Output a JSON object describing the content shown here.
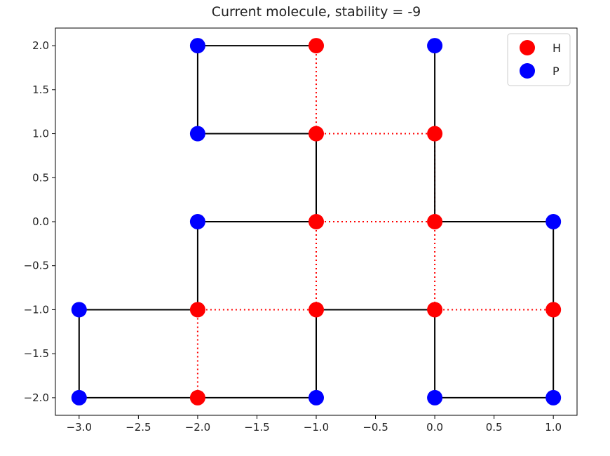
{
  "chart_data": {
    "type": "scatter",
    "title": "Current molecule, stability = -9",
    "xlabel": "",
    "ylabel": "",
    "xlim": [
      -3.2,
      1.2
    ],
    "ylim": [
      -2.2,
      2.2
    ],
    "xticks": [
      -3.0,
      -2.5,
      -2.0,
      -1.5,
      -1.0,
      -0.5,
      0.0,
      0.5,
      1.0
    ],
    "yticks": [
      -2.0,
      -1.5,
      -1.0,
      -0.5,
      0.0,
      0.5,
      1.0,
      1.5,
      2.0
    ],
    "xtick_labels": [
      "−3.0",
      "−2.5",
      "−2.0",
      "−1.5",
      "−1.0",
      "−0.5",
      "0.0",
      "0.5",
      "1.0"
    ],
    "ytick_labels": [
      "−2.0",
      "−1.5",
      "−1.0",
      "−0.5",
      "0.0",
      "0.5",
      "1.0",
      "1.5",
      "2.0"
    ],
    "grid": false,
    "legend": {
      "placement": "top-right",
      "entries": [
        {
          "label": "H",
          "color": "#ff0000"
        },
        {
          "label": "P",
          "color": "#0000ff"
        }
      ]
    },
    "colors": {
      "H": "#ff0000",
      "P": "#0000ff",
      "chain": "#000000",
      "contact": "#ff0000"
    },
    "chain": [
      {
        "x": 0,
        "y": 2,
        "type": "P"
      },
      {
        "x": 0,
        "y": 1,
        "type": "H"
      },
      {
        "x": 0,
        "y": 0,
        "type": "H"
      },
      {
        "x": 1,
        "y": 0,
        "type": "P"
      },
      {
        "x": 1,
        "y": -1,
        "type": "H"
      },
      {
        "x": 1,
        "y": -2,
        "type": "P"
      },
      {
        "x": 0,
        "y": -2,
        "type": "P"
      },
      {
        "x": 0,
        "y": -1,
        "type": "H"
      },
      {
        "x": -1,
        "y": -1,
        "type": "H"
      },
      {
        "x": -1,
        "y": -2,
        "type": "P"
      },
      {
        "x": -2,
        "y": -2,
        "type": "H"
      },
      {
        "x": -3,
        "y": -2,
        "type": "P"
      },
      {
        "x": -3,
        "y": -1,
        "type": "P"
      },
      {
        "x": -2,
        "y": -1,
        "type": "H"
      },
      {
        "x": -2,
        "y": 0,
        "type": "P"
      },
      {
        "x": -1,
        "y": 0,
        "type": "H"
      },
      {
        "x": -1,
        "y": 1,
        "type": "H"
      },
      {
        "x": -2,
        "y": 1,
        "type": "P"
      },
      {
        "x": -2,
        "y": 2,
        "type": "P"
      },
      {
        "x": -1,
        "y": 2,
        "type": "H"
      }
    ],
    "contacts": [
      [
        {
          "x": -1,
          "y": 2
        },
        {
          "x": -1,
          "y": 1
        }
      ],
      [
        {
          "x": -1,
          "y": 1
        },
        {
          "x": 0,
          "y": 1
        }
      ],
      [
        {
          "x": -1,
          "y": 0
        },
        {
          "x": 0,
          "y": 0
        }
      ],
      [
        {
          "x": -1,
          "y": 0
        },
        {
          "x": -1,
          "y": -1
        }
      ],
      [
        {
          "x": 0,
          "y": 1
        },
        {
          "x": 0,
          "y": 0
        }
      ],
      [
        {
          "x": 0,
          "y": 0
        },
        {
          "x": 0,
          "y": -1
        }
      ],
      [
        {
          "x": -2,
          "y": -1
        },
        {
          "x": -1,
          "y": -1
        }
      ],
      [
        {
          "x": -2,
          "y": -1
        },
        {
          "x": -2,
          "y": -2
        }
      ],
      [
        {
          "x": 0,
          "y": -1
        },
        {
          "x": 1,
          "y": -1
        }
      ]
    ]
  }
}
